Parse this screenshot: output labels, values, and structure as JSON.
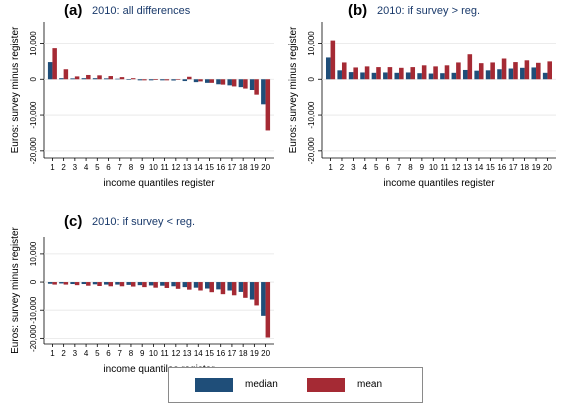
{
  "colors": {
    "median": "#1f4e79",
    "mean": "#a52a34"
  },
  "legend": [
    {
      "name": "median",
      "color": "#1f4e79"
    },
    {
      "name": "mean",
      "color": "#a52a34"
    }
  ],
  "chart_data": [
    {
      "type": "bar",
      "panel_letter": "(a)",
      "title": "2010: all differences",
      "xlabel": "income quantiles register",
      "ylabel": "Euros: survey minus register",
      "ylim": [
        -22000,
        16000
      ],
      "yticks": [
        -20000,
        -10000,
        0,
        10000
      ],
      "ytick_labels": [
        "-20,000",
        "-10,000",
        "0",
        "10,000"
      ],
      "categories": [
        "1",
        "2",
        "3",
        "4",
        "5",
        "6",
        "7",
        "8",
        "9",
        "10",
        "11",
        "12",
        "13",
        "14",
        "15",
        "16",
        "17",
        "18",
        "19",
        "20"
      ],
      "series": [
        {
          "name": "median",
          "values": [
            4800,
            300,
            250,
            300,
            300,
            250,
            150,
            0,
            -300,
            -300,
            -300,
            -350,
            -500,
            -800,
            -1000,
            -1400,
            -1700,
            -2200,
            -3000,
            -7000
          ]
        },
        {
          "name": "mean",
          "values": [
            8700,
            2800,
            800,
            1200,
            1100,
            900,
            600,
            300,
            -300,
            -200,
            -300,
            -100,
            700,
            -600,
            -1000,
            -1500,
            -2000,
            -2600,
            -4300,
            -14300
          ]
        }
      ]
    },
    {
      "type": "bar",
      "panel_letter": "(b)",
      "title": "2010: if survey > reg.",
      "xlabel": "income quantiles register",
      "ylabel": "Euros: survey minus register",
      "ylim": [
        -22000,
        16000
      ],
      "yticks": [
        -20000,
        -10000,
        0,
        10000
      ],
      "ytick_labels": [
        "-20,000",
        "-10,000",
        "0",
        "10,000"
      ],
      "categories": [
        "1",
        "2",
        "3",
        "4",
        "5",
        "6",
        "7",
        "8",
        "9",
        "10",
        "11",
        "12",
        "13",
        "14",
        "15",
        "16",
        "17",
        "18",
        "19",
        "20"
      ],
      "series": [
        {
          "name": "median",
          "values": [
            6100,
            2500,
            2000,
            1900,
            1800,
            1900,
            1800,
            1900,
            1700,
            1600,
            1700,
            1800,
            2600,
            2400,
            2500,
            2800,
            3000,
            3200,
            3300,
            1800
          ]
        },
        {
          "name": "mean",
          "values": [
            10800,
            4700,
            3300,
            3600,
            3400,
            3400,
            3200,
            3400,
            3900,
            3600,
            3900,
            4700,
            7000,
            4500,
            4700,
            5800,
            4800,
            5300,
            4600,
            5000
          ]
        }
      ]
    },
    {
      "type": "bar",
      "panel_letter": "(c)",
      "title": "2010: if survey < reg.",
      "xlabel": "income quantiles register",
      "ylabel": "Euros: survey minus register",
      "ylim": [
        -22000,
        16000
      ],
      "yticks": [
        -20000,
        -10000,
        0,
        10000
      ],
      "ytick_labels": [
        "-20,000",
        "-10,000",
        "0",
        "10,000"
      ],
      "categories": [
        "1",
        "2",
        "3",
        "4",
        "5",
        "6",
        "7",
        "8",
        "9",
        "10",
        "11",
        "12",
        "13",
        "14",
        "15",
        "16",
        "17",
        "18",
        "19",
        "20"
      ],
      "series": [
        {
          "name": "median",
          "values": [
            -600,
            -500,
            -700,
            -700,
            -800,
            -900,
            -900,
            -1000,
            -1100,
            -1200,
            -1300,
            -1500,
            -1800,
            -2000,
            -2300,
            -2600,
            -3000,
            -3500,
            -6200,
            -12000
          ]
        },
        {
          "name": "mean",
          "values": [
            -900,
            -900,
            -1100,
            -1300,
            -1400,
            -1500,
            -1500,
            -1600,
            -1800,
            -2000,
            -2100,
            -2400,
            -2700,
            -3000,
            -3600,
            -4300,
            -4700,
            -5600,
            -8300,
            -19700
          ]
        }
      ]
    }
  ]
}
